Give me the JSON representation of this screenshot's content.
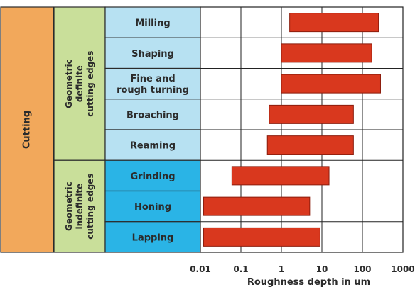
{
  "chart_data": {
    "type": "bar",
    "orientation": "horizontal",
    "log_scale_x": true,
    "xlabel": "Roughness depth in um",
    "xlim": [
      0.01,
      1000
    ],
    "xticks": [
      "0.01",
      "0.1",
      "1",
      "10",
      "100",
      "1000"
    ],
    "grid": true,
    "colors": {
      "bar": "#d9381e",
      "cutting": "#f2a85b",
      "geometric_definite": "#c9df9a",
      "geometric_indefinite": "#c9df9a",
      "definite_rows": "#b7e1f2",
      "indefinite_rows": "#2ab4e6",
      "grid": "#222222"
    },
    "main_category": "Cutting",
    "groups": [
      {
        "label_lines": [
          "Geometric",
          "definite",
          "cutting edges"
        ],
        "row_count": 5,
        "style": "definite"
      },
      {
        "label_lines": [
          "Geometric",
          "indefinite",
          "cutting edges"
        ],
        "row_count": 3,
        "style": "indefinite"
      }
    ],
    "categories": [
      [
        "Milling"
      ],
      [
        "Shaping"
      ],
      [
        "Fine and",
        "rough turning"
      ],
      [
        "Broaching"
      ],
      [
        "Reaming"
      ],
      [
        "Grinding"
      ],
      [
        "Honing"
      ],
      [
        "Lapping"
      ]
    ],
    "ranges": [
      [
        1.6,
        250
      ],
      [
        1.0,
        170
      ],
      [
        1.0,
        280
      ],
      [
        0.5,
        60
      ],
      [
        0.45,
        60
      ],
      [
        0.06,
        15
      ],
      [
        0.012,
        5
      ],
      [
        0.012,
        9
      ]
    ]
  }
}
